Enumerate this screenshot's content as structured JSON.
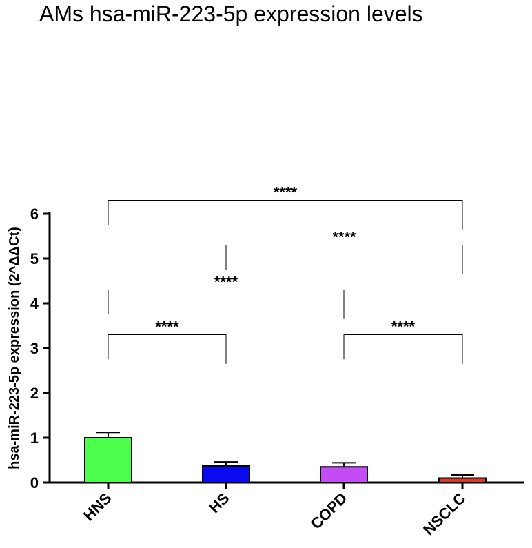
{
  "chart_data": {
    "type": "bar",
    "title": "AMs hsa-miR-223-5p expression levels",
    "ylabel": "hsa-miR-223-5p expression (2^ΔΔCt)",
    "xlabel": "",
    "categories": [
      "HNS",
      "HS",
      "COPD",
      "NSCLC"
    ],
    "values": [
      1.0,
      0.37,
      0.35,
      0.1
    ],
    "errors": [
      0.12,
      0.09,
      0.09,
      0.07
    ],
    "colors": [
      "#4cff4c",
      "#0a0af0",
      "#c34cf5",
      "#d83c28"
    ],
    "ylim": [
      0,
      6
    ],
    "yticks": [
      "0",
      "1",
      "2",
      "3",
      "4",
      "5",
      "6"
    ],
    "grid": false,
    "significance": [
      {
        "from": 0,
        "to": 1,
        "level": 3.3,
        "label": "****"
      },
      {
        "from": 2,
        "to": 3,
        "level": 3.3,
        "label": "****"
      },
      {
        "from": 0,
        "to": 2,
        "level": 4.3,
        "label": "****"
      },
      {
        "from": 1,
        "to": 3,
        "level": 5.3,
        "label": "****"
      },
      {
        "from": 0,
        "to": 3,
        "level": 6.3,
        "label": "****"
      }
    ]
  }
}
